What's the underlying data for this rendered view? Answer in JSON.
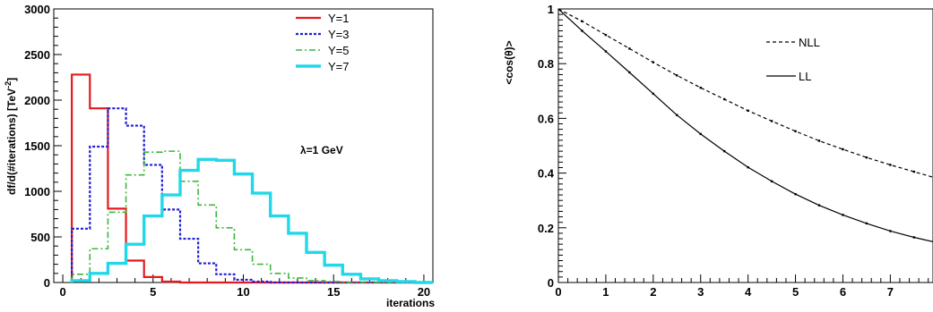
{
  "chart_data": [
    {
      "type": "step",
      "xlabel": "iterations",
      "ylabel": "df/d(#iterations) [TeV^-2]",
      "xlim": [
        -0.5,
        20.5
      ],
      "ylim": [
        0,
        3000
      ],
      "xticks": [
        "0",
        "5",
        "10",
        "15",
        "20"
      ],
      "yticks": [
        "0",
        "500",
        "1000",
        "1500",
        "2000",
        "2500",
        "3000"
      ],
      "annotation": "λ=1 GeV",
      "legend_position": "top-right",
      "bin_edges": [
        0.5,
        1.5,
        2.5,
        3.5,
        4.5,
        5.5,
        6.5,
        7.5,
        8.5,
        9.5,
        10.5,
        11.5,
        12.5,
        13.5,
        14.5,
        15.5,
        16.5,
        17.5,
        18.5,
        19.5,
        20.5
      ],
      "series": [
        {
          "name": "Y=1",
          "color": "#e41a1c",
          "style": "solid",
          "values": [
            2280,
            1910,
            810,
            240,
            60,
            10,
            0,
            0,
            0,
            0,
            0,
            0,
            0,
            0,
            0,
            0,
            0,
            0,
            0,
            0
          ]
        },
        {
          "name": "Y=3",
          "color": "#1f1fd6",
          "style": "dotted",
          "values": [
            590,
            1490,
            1910,
            1720,
            1290,
            800,
            480,
            210,
            90,
            30,
            10,
            0,
            0,
            0,
            0,
            0,
            0,
            0,
            0,
            0
          ]
        },
        {
          "name": "Y=5",
          "color": "#3cb83c",
          "style": "dashdot",
          "values": [
            90,
            370,
            770,
            1180,
            1430,
            1440,
            1110,
            850,
            600,
            360,
            200,
            100,
            50,
            20,
            10,
            0,
            0,
            0,
            0,
            0
          ]
        },
        {
          "name": "Y=7",
          "color": "#22d8e8",
          "style": "thick",
          "values": [
            20,
            100,
            210,
            420,
            730,
            960,
            1230,
            1350,
            1340,
            1190,
            980,
            730,
            540,
            330,
            190,
            90,
            40,
            20,
            10,
            0
          ]
        }
      ]
    },
    {
      "type": "line",
      "ylabel": "<cos(θ)>",
      "xlim": [
        0,
        8
      ],
      "ylim": [
        0,
        1
      ],
      "xticks": [
        "0",
        "1",
        "2",
        "3",
        "4",
        "5",
        "6",
        "7"
      ],
      "yticks": [
        "0",
        "0.2",
        "0.4",
        "0.6",
        "0.8",
        "1"
      ],
      "legend_position": "top-center",
      "series": [
        {
          "name": "NLL",
          "style": "dashed",
          "x": [
            0,
            0.5,
            1,
            1.5,
            2,
            2.5,
            3,
            3.5,
            4,
            4.5,
            5,
            5.5,
            6,
            6.5,
            7,
            7.5,
            8
          ],
          "y": [
            1.0,
            0.955,
            0.905,
            0.855,
            0.805,
            0.757,
            0.712,
            0.67,
            0.628,
            0.59,
            0.553,
            0.518,
            0.487,
            0.457,
            0.43,
            0.405,
            0.38
          ]
        },
        {
          "name": "LL",
          "style": "solid",
          "x": [
            0,
            0.5,
            1,
            1.5,
            2,
            2.5,
            3,
            3.5,
            4,
            4.5,
            5,
            5.5,
            6,
            6.5,
            7,
            7.5,
            8
          ],
          "y": [
            1.0,
            0.92,
            0.845,
            0.768,
            0.69,
            0.612,
            0.543,
            0.48,
            0.421,
            0.37,
            0.323,
            0.282,
            0.247,
            0.216,
            0.188,
            0.165,
            0.145
          ]
        }
      ]
    }
  ]
}
